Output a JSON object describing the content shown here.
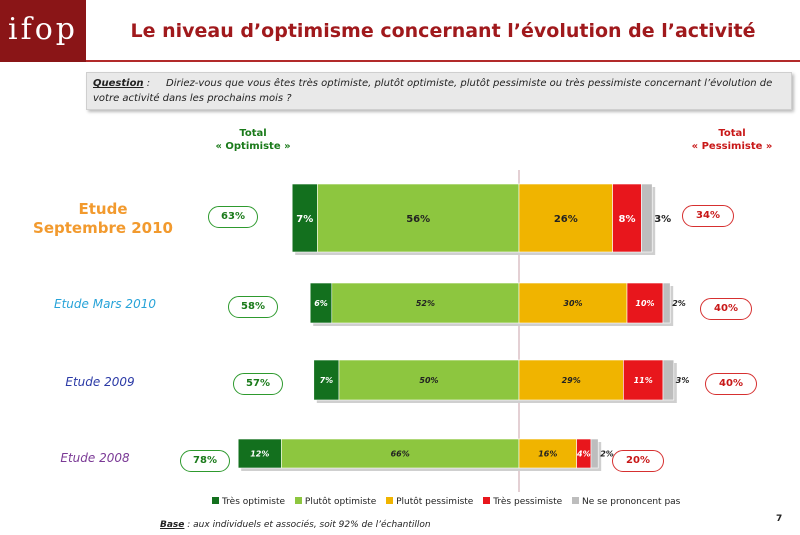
{
  "logo": {
    "text": "ifop"
  },
  "title": "Le niveau d’optimisme concernant l’évolution de l’activité",
  "question": {
    "label": "Question",
    "text": "Diriez-vous que vous êtes très optimiste, plutôt optimiste, plutôt pessimiste ou très pessimiste concernant l’évolution de votre activité dans les prochains mois ?"
  },
  "totals": {
    "optimiste_header": "Total\n« Optimiste »",
    "pessimiste_header": "Total\n« Pessimiste »"
  },
  "colors": {
    "tres_optimiste": "#13701e",
    "plutot_optimiste": "#8dc63f",
    "plutot_pessimiste": "#f0b400",
    "tres_pessimiste": "#e8161c",
    "nsp": "#bdbdbd",
    "study_2010_sept": "#f29a2e",
    "study_2010_mars": "#27a3d8",
    "study_2009": "#2b3aa6",
    "study_2008": "#7b3a96"
  },
  "chart_data": {
    "type": "bar",
    "orientation": "horizontal",
    "stacked": true,
    "diverging": true,
    "categories": [
      "Etude Septembre 2010",
      "Etude Mars 2010",
      "Etude 2009",
      "Etude 2008"
    ],
    "series": [
      {
        "name": "Très optimiste",
        "values": [
          7,
          6,
          7,
          12
        ]
      },
      {
        "name": "Plutôt optimiste",
        "values": [
          56,
          52,
          50,
          66
        ]
      },
      {
        "name": "Plutôt pessimiste",
        "values": [
          26,
          30,
          29,
          16
        ]
      },
      {
        "name": "Très pessimiste",
        "values": [
          8,
          10,
          11,
          4
        ]
      },
      {
        "name": "Ne se prononcent pas",
        "values": [
          3,
          2,
          3,
          2
        ]
      }
    ],
    "total_optimiste": [
      "63%",
      "58%",
      "57%",
      "78%"
    ],
    "total_pessimiste": [
      "34%",
      "40%",
      "40%",
      "20%"
    ],
    "legend_position": "bottom"
  },
  "rows": [
    {
      "label": "Etude\nSeptembre 2010",
      "opt": "63%",
      "pes": "34%"
    },
    {
      "label": "Etude Mars 2010",
      "opt": "58%",
      "pes": "40%"
    },
    {
      "label": "Etude 2009",
      "opt": "57%",
      "pes": "40%"
    },
    {
      "label": "Etude 2008",
      "opt": "78%",
      "pes": "20%"
    }
  ],
  "legend": [
    "Très optimiste",
    "Plutôt optimiste",
    "Plutôt pessimiste",
    "Très pessimiste",
    "Ne se prononcent pas"
  ],
  "base": {
    "label": "Base",
    "text": " : aux individuels et associés, soit 92% de l’échantillon"
  },
  "page_number": "7"
}
